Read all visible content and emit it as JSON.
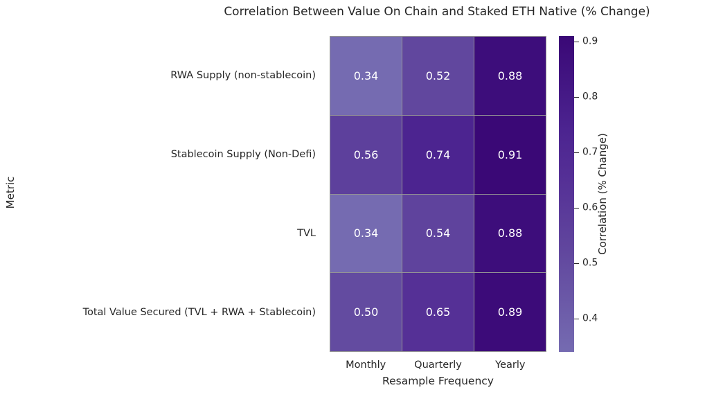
{
  "chart_data": {
    "type": "heatmap",
    "title": "Correlation Between Value On Chain and Staked ETH Native (% Change)",
    "xlabel": "Resample Frequency",
    "ylabel": "Metric",
    "columns": [
      "Monthly",
      "Quarterly",
      "Yearly"
    ],
    "rows": [
      "RWA Supply (non-stablecoin)",
      "Stablecoin Supply (Non-Defi)",
      "TVL",
      "Total Value Secured (TVL + RWA + Stablecoin)"
    ],
    "values": [
      [
        0.34,
        0.52,
        0.88
      ],
      [
        0.56,
        0.74,
        0.91
      ],
      [
        0.34,
        0.54,
        0.88
      ],
      [
        0.5,
        0.65,
        0.89
      ]
    ],
    "value_decimals": 2,
    "cell_text_color": "#ffffff",
    "grid_line_color": "#949494",
    "legend_position": "right-colorbar",
    "colorbar": {
      "label": "Correlation (% Change)",
      "ticks": [
        "0.9",
        "0.8",
        "0.7",
        "0.6",
        "0.5",
        "0.4"
      ],
      "tick_values": [
        0.9,
        0.8,
        0.7,
        0.6,
        0.5,
        0.4
      ],
      "vmin": 0.34,
      "vmax": 0.91,
      "colormap_stops": [
        {
          "v": 0.34,
          "color": "#756bb1"
        },
        {
          "v": 0.52,
          "color": "#61479e"
        },
        {
          "v": 0.65,
          "color": "#553096"
        },
        {
          "v": 0.74,
          "color": "#4c2490"
        },
        {
          "v": 0.91,
          "color": "#3a0876"
        }
      ]
    }
  }
}
